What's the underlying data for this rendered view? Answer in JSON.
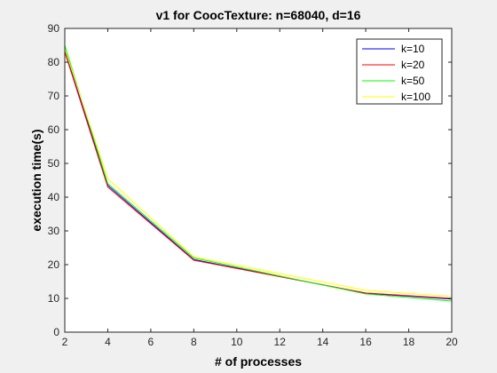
{
  "chart_data": {
    "type": "line",
    "title": "v1 for CoocTexture: n=68040, d=16",
    "xlabel": "# of processes",
    "ylabel": "execution time(s)",
    "x": [
      2,
      4,
      8,
      16,
      20
    ],
    "xlim": [
      2,
      20
    ],
    "ylim": [
      0,
      90
    ],
    "xticks": [
      2,
      4,
      6,
      8,
      10,
      12,
      14,
      16,
      18,
      20
    ],
    "yticks": [
      0,
      10,
      20,
      30,
      40,
      50,
      60,
      70,
      80,
      90
    ],
    "grid": false,
    "legend_position": "top-right",
    "series": [
      {
        "name": "k=10",
        "color": "#0000ff",
        "values": [
          83.5,
          43.5,
          21.5,
          11.5,
          9.8
        ]
      },
      {
        "name": "k=20",
        "color": "#ff0000",
        "values": [
          83.0,
          43.0,
          21.3,
          11.6,
          10.0
        ]
      },
      {
        "name": "k=50",
        "color": "#00ff00",
        "values": [
          85.0,
          44.0,
          22.0,
          11.3,
          9.2
        ]
      },
      {
        "name": "k=100",
        "color": "#ffff00",
        "values": [
          84.0,
          45.5,
          22.3,
          12.4,
          10.6
        ]
      }
    ]
  }
}
